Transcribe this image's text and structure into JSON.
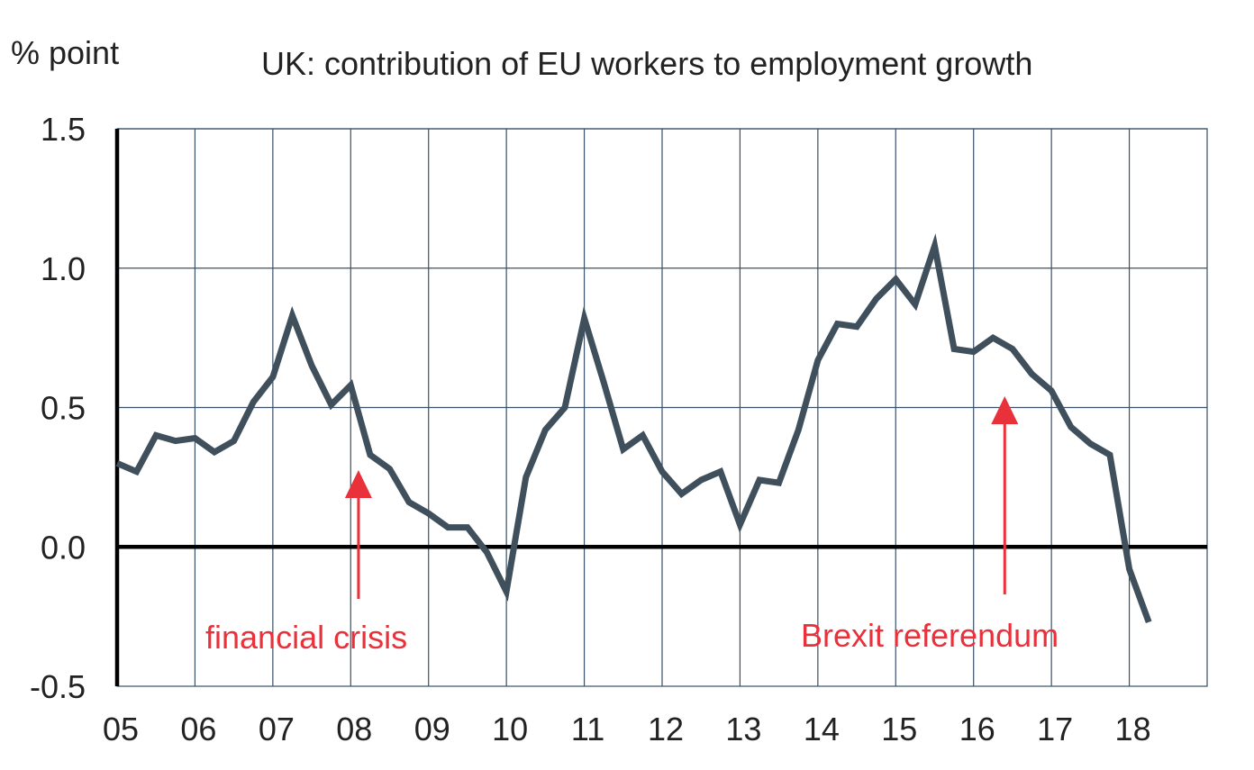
{
  "chart_data": {
    "type": "line",
    "title": "UK: contribution of EU workers to employment growth",
    "ylabel": "% point",
    "xlabel": "",
    "x_tick_labels": [
      "05",
      "06",
      "07",
      "08",
      "09",
      "10",
      "11",
      "12",
      "13",
      "14",
      "15",
      "16",
      "17",
      "18"
    ],
    "y_tick_labels": [
      "1.5",
      "1.0",
      "0.5",
      "0.0",
      "-0.5"
    ],
    "y_ticks": [
      1.5,
      1.0,
      0.5,
      0.0,
      -0.5
    ],
    "xlim": [
      2005,
      2019
    ],
    "ylim": [
      -0.5,
      1.5
    ],
    "grid": true,
    "series": [
      {
        "color": "#3f4f5c",
        "x": [
          2005.0,
          2005.25,
          2005.5,
          2005.75,
          2006.0,
          2006.25,
          2006.5,
          2006.75,
          2007.0,
          2007.25,
          2007.5,
          2007.75,
          2008.0,
          2008.25,
          2008.5,
          2008.75,
          2009.0,
          2009.25,
          2009.5,
          2009.75,
          2010.0,
          2010.25,
          2010.5,
          2010.75,
          2011.0,
          2011.25,
          2011.5,
          2011.75,
          2012.0,
          2012.25,
          2012.5,
          2012.75,
          2013.0,
          2013.25,
          2013.5,
          2013.75,
          2014.0,
          2014.25,
          2014.5,
          2014.75,
          2015.0,
          2015.25,
          2015.5,
          2015.75,
          2016.0,
          2016.25,
          2016.5,
          2016.75,
          2017.0,
          2017.25,
          2017.5,
          2017.75,
          2018.0,
          2018.25
        ],
        "y": [
          0.3,
          0.27,
          0.4,
          0.38,
          0.39,
          0.34,
          0.38,
          0.52,
          0.61,
          0.83,
          0.65,
          0.51,
          0.58,
          0.33,
          0.28,
          0.16,
          0.12,
          0.07,
          0.07,
          -0.02,
          -0.16,
          0.25,
          0.42,
          0.5,
          0.82,
          0.59,
          0.35,
          0.4,
          0.27,
          0.19,
          0.24,
          0.27,
          0.08,
          0.24,
          0.23,
          0.42,
          0.67,
          0.8,
          0.79,
          0.89,
          0.96,
          0.87,
          1.08,
          0.71,
          0.7,
          0.75,
          0.71,
          0.62,
          0.56,
          0.43,
          0.37,
          0.33,
          -0.08,
          -0.27
        ]
      }
    ],
    "annotations": [
      {
        "text": "financial crisis",
        "arrow_x": 2008.1,
        "color": "#e8313a"
      },
      {
        "text": "Brexit referendum",
        "arrow_x": 2016.4,
        "color": "#e8313a"
      }
    ]
  }
}
